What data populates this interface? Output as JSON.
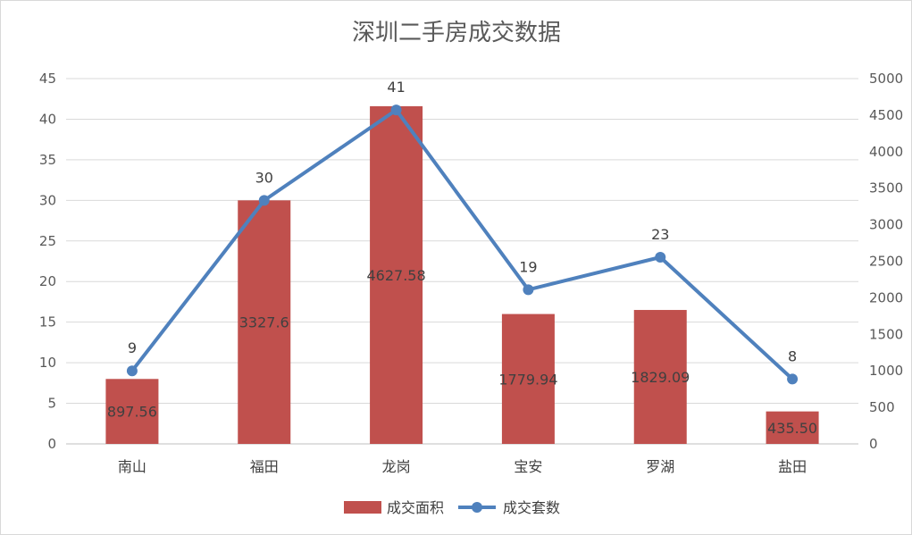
{
  "chart_data": {
    "type": "bar",
    "title": "深圳二手房成交数据",
    "categories": [
      "南山",
      "福田",
      "龙岗",
      "宝安",
      "罗湖",
      "盐田"
    ],
    "series": [
      {
        "name": "成交面积",
        "type": "bar",
        "axis": "left",
        "color": "#c0504d",
        "values": [
          8,
          30,
          41.6,
          16,
          16.5,
          4
        ],
        "labels": [
          "897.56",
          "3327.6",
          "4627.58",
          "1779.94",
          "1829.09",
          "435.50"
        ]
      },
      {
        "name": "成交套数",
        "type": "line",
        "axis": "right",
        "color": "#4f81bd",
        "values": [
          1000,
          3333,
          4570,
          2111,
          2555,
          888
        ],
        "labels": [
          "9",
          "30",
          "41",
          "19",
          "23",
          "8"
        ]
      }
    ],
    "y_left": {
      "min": 0,
      "max": 45,
      "step": 5,
      "ticks": [
        "0",
        "5",
        "10",
        "15",
        "20",
        "25",
        "30",
        "35",
        "40",
        "45"
      ]
    },
    "y_right": {
      "min": 0,
      "max": 5000,
      "step": 500,
      "ticks": [
        "0",
        "500",
        "1000",
        "1500",
        "2000",
        "2500",
        "3000",
        "3500",
        "4000",
        "4500",
        "5000"
      ]
    },
    "grid": true,
    "legend_position": "bottom"
  }
}
